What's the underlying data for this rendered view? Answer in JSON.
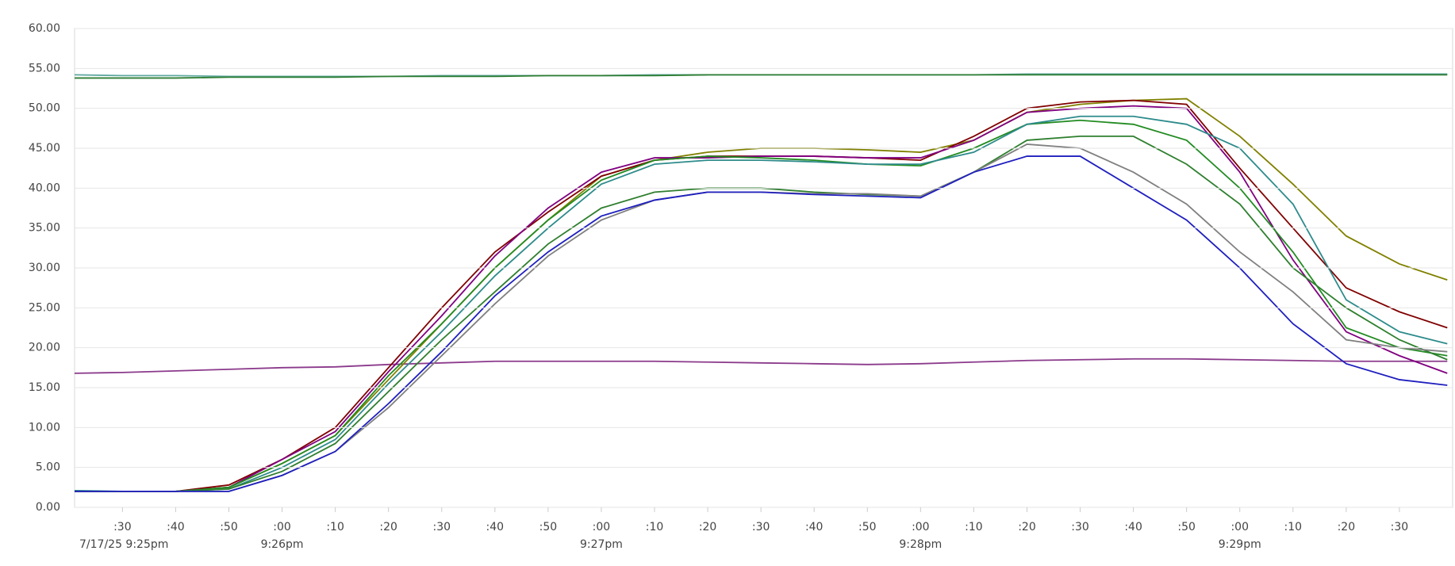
{
  "chart_data": {
    "type": "line",
    "x": [
      21,
      30,
      40,
      50,
      60,
      70,
      80,
      90,
      100,
      110,
      120,
      130,
      140,
      150,
      160,
      170,
      180,
      190,
      200,
      210,
      220,
      230,
      240,
      250,
      260,
      270,
      279
    ],
    "xlim": [
      21,
      280
    ],
    "xticks": [
      {
        "value": 30,
        "label": ":30"
      },
      {
        "value": 40,
        "label": ":40"
      },
      {
        "value": 50,
        "label": ":50"
      },
      {
        "value": 60,
        "label": ":00"
      },
      {
        "value": 70,
        "label": ":10"
      },
      {
        "value": 80,
        "label": ":20"
      },
      {
        "value": 90,
        "label": ":30"
      },
      {
        "value": 100,
        "label": ":40"
      },
      {
        "value": 110,
        "label": ":50"
      },
      {
        "value": 120,
        "label": ":00"
      },
      {
        "value": 130,
        "label": ":10"
      },
      {
        "value": 140,
        "label": ":20"
      },
      {
        "value": 150,
        "label": ":30"
      },
      {
        "value": 160,
        "label": ":40"
      },
      {
        "value": 170,
        "label": ":50"
      },
      {
        "value": 180,
        "label": ":00"
      },
      {
        "value": 190,
        "label": ":10"
      },
      {
        "value": 200,
        "label": ":20"
      },
      {
        "value": 210,
        "label": ":30"
      },
      {
        "value": 220,
        "label": ":40"
      },
      {
        "value": 230,
        "label": ":50"
      },
      {
        "value": 240,
        "label": ":00"
      },
      {
        "value": 250,
        "label": ":10"
      },
      {
        "value": 260,
        "label": ":20"
      },
      {
        "value": 270,
        "label": ":30"
      }
    ],
    "x_major_labels": [
      {
        "value": 21,
        "label": "7/17/25 9:25pm"
      },
      {
        "value": 60,
        "label": "9:26pm"
      },
      {
        "value": 120,
        "label": "9:27pm"
      },
      {
        "value": 180,
        "label": "9:28pm"
      },
      {
        "value": 240,
        "label": "9:29pm"
      }
    ],
    "ylim": [
      0,
      60
    ],
    "yticks": [
      {
        "value": 0,
        "label": "0.00"
      },
      {
        "value": 5,
        "label": "5.00"
      },
      {
        "value": 10,
        "label": "10.00"
      },
      {
        "value": 15,
        "label": "15.00"
      },
      {
        "value": 20,
        "label": "20.00"
      },
      {
        "value": 25,
        "label": "25.00"
      },
      {
        "value": 30,
        "label": "30.00"
      },
      {
        "value": 35,
        "label": "35.00"
      },
      {
        "value": 40,
        "label": "40.00"
      },
      {
        "value": 45,
        "label": "45.00"
      },
      {
        "value": 50,
        "label": "50.00"
      },
      {
        "value": 55,
        "label": "55.00"
      },
      {
        "value": 60,
        "label": "60.00"
      }
    ],
    "grid": true,
    "series": [
      {
        "color": "#5fa8a0",
        "values": [
          54.2,
          54.1,
          54.1,
          54.0,
          54.0,
          54.0,
          54.0,
          54.1,
          54.1,
          54.1,
          54.1,
          54.2,
          54.2,
          54.2,
          54.2,
          54.2,
          54.2,
          54.2,
          54.3,
          54.3,
          54.3,
          54.3,
          54.3,
          54.3,
          54.3,
          54.3,
          54.3
        ]
      },
      {
        "color": "#2e7d32",
        "values": [
          53.8,
          53.8,
          53.8,
          53.9,
          53.9,
          53.9,
          54,
          54,
          54,
          54.1,
          54.1,
          54.1,
          54.2,
          54.2,
          54.2,
          54.2,
          54.2,
          54.2,
          54.2,
          54.2,
          54.2,
          54.2,
          54.2,
          54.2,
          54.2,
          54.2,
          54.2
        ]
      },
      {
        "color": "#8b3a8b",
        "values": [
          16.8,
          16.9,
          17.1,
          17.3,
          17.5,
          17.6,
          17.9,
          18.1,
          18.3,
          18.3,
          18.3,
          18.3,
          18.2,
          18.1,
          18.0,
          17.9,
          18.0,
          18.2,
          18.4,
          18.5,
          18.6,
          18.6,
          18.5,
          18.4,
          18.3,
          18.3,
          18.3
        ]
      },
      {
        "color": "#808000",
        "values": [
          2,
          2,
          2,
          2.5,
          5.5,
          9,
          16,
          23,
          30,
          36,
          41.5,
          43.5,
          44.5,
          45,
          45,
          44.8,
          44.5,
          46,
          49.5,
          50.5,
          51,
          51.2,
          46.5,
          40.5,
          34,
          30.5,
          28.5
        ]
      },
      {
        "color": "#800000",
        "values": [
          2,
          2,
          2,
          2.8,
          6,
          10,
          17.5,
          25,
          32,
          37,
          41.5,
          43.5,
          44,
          44,
          44,
          43.8,
          43.5,
          46.5,
          50,
          50.8,
          51,
          50.5,
          42.5,
          35,
          27.5,
          24.5,
          22.5
        ]
      },
      {
        "color": "#800080",
        "values": [
          2,
          2,
          2,
          2.5,
          6,
          9.5,
          17,
          24,
          31.5,
          37.5,
          42,
          43.8,
          43.8,
          44,
          44,
          43.8,
          43.8,
          46,
          49.5,
          50,
          50.3,
          50,
          42,
          31,
          22,
          19,
          16.8
        ]
      },
      {
        "color": "#228b22",
        "values": [
          2,
          2,
          2,
          2.5,
          5.5,
          9,
          16.5,
          23,
          30,
          36,
          41,
          43.5,
          44,
          43.8,
          43.5,
          43,
          42.8,
          45,
          48,
          48.5,
          48,
          46,
          40,
          32,
          22.5,
          20,
          19
        ]
      },
      {
        "color": "#2e8b8b",
        "values": [
          2.1,
          2,
          2,
          2.3,
          5,
          8.5,
          15.5,
          22,
          29,
          35,
          40.5,
          43,
          43.5,
          43.5,
          43.3,
          43,
          43,
          44.5,
          48,
          49,
          49,
          48,
          45,
          38,
          26,
          22,
          20.5
        ]
      },
      {
        "color": "#2f7f2f",
        "values": [
          2,
          2,
          2,
          2.3,
          4.5,
          8,
          14.5,
          21,
          27,
          33,
          37.5,
          39.5,
          40,
          40,
          39.5,
          39.2,
          39,
          42,
          46,
          46.5,
          46.5,
          43,
          38,
          30,
          25,
          21,
          18.5
        ]
      },
      {
        "color": "#808080",
        "values": [
          2,
          2,
          2,
          2,
          4,
          7,
          12.5,
          19,
          25.5,
          31.5,
          36,
          38.5,
          39.5,
          39.5,
          39.3,
          39.3,
          39,
          42,
          45.5,
          45,
          42,
          38,
          32,
          27,
          21,
          20,
          19.5
        ]
      },
      {
        "color": "#1f1fbf",
        "values": [
          2,
          2,
          2,
          2,
          4,
          7,
          13,
          19.5,
          26.5,
          32,
          36.5,
          38.5,
          39.5,
          39.5,
          39.2,
          39,
          38.8,
          42,
          44,
          44,
          40,
          36,
          30,
          23,
          18,
          16,
          15.3
        ]
      }
    ]
  }
}
